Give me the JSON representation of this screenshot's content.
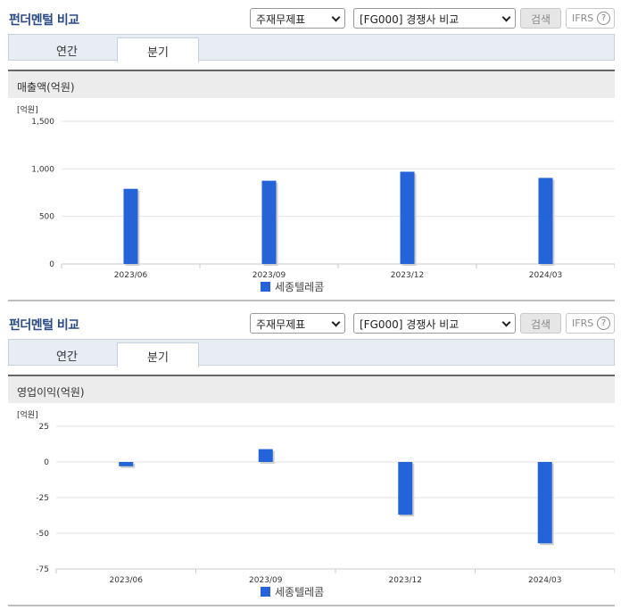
{
  "sections": [
    {
      "title": "펀더멘털 비교",
      "select_statement": "주재무제표",
      "select_compare": "[FG000] 경쟁사 비교",
      "search_label": "검색",
      "ifrs_label": "IFRS",
      "help_glyph": "?",
      "tabs": [
        {
          "label": "연간"
        },
        {
          "label": "분기"
        }
      ],
      "metric_label": "매출액(억원)",
      "unit_label": "[억원]",
      "legend_label": "세종텔레콤"
    },
    {
      "title": "펀더멘털 비교",
      "select_statement": "주재무제표",
      "select_compare": "[FG000] 경쟁사 비교",
      "search_label": "검색",
      "ifrs_label": "IFRS",
      "help_glyph": "?",
      "tabs": [
        {
          "label": "연간"
        },
        {
          "label": "분기"
        }
      ],
      "metric_label": "영업이익(억원)",
      "unit_label": "[억원]",
      "legend_label": "세종텔레콤"
    }
  ],
  "colors": {
    "bar": "#2563d9",
    "title": "#2a4a86"
  },
  "chart_data": [
    {
      "type": "bar",
      "title": "매출액(억원)",
      "ylabel": "[억원]",
      "categories": [
        "2023/06",
        "2023/09",
        "2023/12",
        "2024/03"
      ],
      "series": [
        {
          "name": "세종텔레콤",
          "values": [
            790,
            875,
            970,
            905
          ]
        }
      ],
      "ylim": [
        0,
        1500
      ],
      "yticks": [
        0,
        500,
        1000,
        1500
      ],
      "ytick_labels": [
        "0",
        "500",
        "1,000",
        "1,500"
      ],
      "grid": true,
      "legend": "bottom"
    },
    {
      "type": "bar",
      "title": "영업이익(억원)",
      "ylabel": "[억원]",
      "categories": [
        "2023/06",
        "2023/09",
        "2023/12",
        "2024/03"
      ],
      "series": [
        {
          "name": "세종텔레콤",
          "values": [
            -3,
            9,
            -37,
            -57
          ]
        }
      ],
      "ylim": [
        -75,
        25
      ],
      "yticks": [
        -75,
        -50,
        -25,
        0,
        25
      ],
      "ytick_labels": [
        "-75",
        "-50",
        "-25",
        "0",
        "25"
      ],
      "grid": true,
      "legend": "bottom"
    }
  ]
}
